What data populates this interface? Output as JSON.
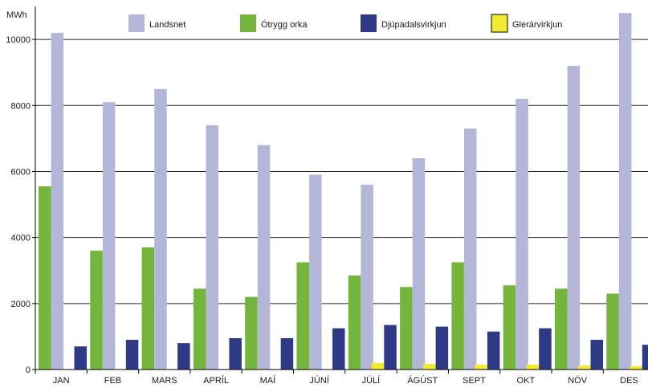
{
  "chart_data": {
    "type": "bar",
    "ylabel": "MWh",
    "ylim": [
      0,
      11000
    ],
    "yticks": [
      0,
      2000,
      4000,
      6000,
      8000,
      10000
    ],
    "grid": true,
    "legend_position": "top",
    "categories": [
      "JAN",
      "FEB",
      "MARS",
      "APRÍL",
      "MAÍ",
      "JÚNÍ",
      "JÚLÍ",
      "ÁGÚST",
      "SEPT",
      "OKT",
      "NÓV",
      "DES"
    ],
    "series": [
      {
        "name": "Landsnet",
        "color": "#b4b6d8",
        "values": [
          10200,
          8100,
          8500,
          7400,
          6800,
          5900,
          5600,
          6400,
          7300,
          8200,
          9200,
          10800
        ]
      },
      {
        "name": "Ótrygg orka",
        "color": "#74b53c",
        "values": [
          5550,
          3600,
          3700,
          2450,
          2200,
          3250,
          2850,
          2500,
          3250,
          2550,
          2450,
          2300
        ]
      },
      {
        "name": "Djúpadalsvirkjun",
        "color": "#2e3a86",
        "values": [
          700,
          900,
          800,
          950,
          950,
          1250,
          1350,
          1300,
          1150,
          1250,
          900,
          750
        ]
      },
      {
        "name": "Glerárvirkjun",
        "color": "#f0ea30",
        "values": [
          0,
          0,
          0,
          0,
          0,
          0,
          200,
          170,
          150,
          150,
          120,
          100
        ]
      }
    ]
  }
}
